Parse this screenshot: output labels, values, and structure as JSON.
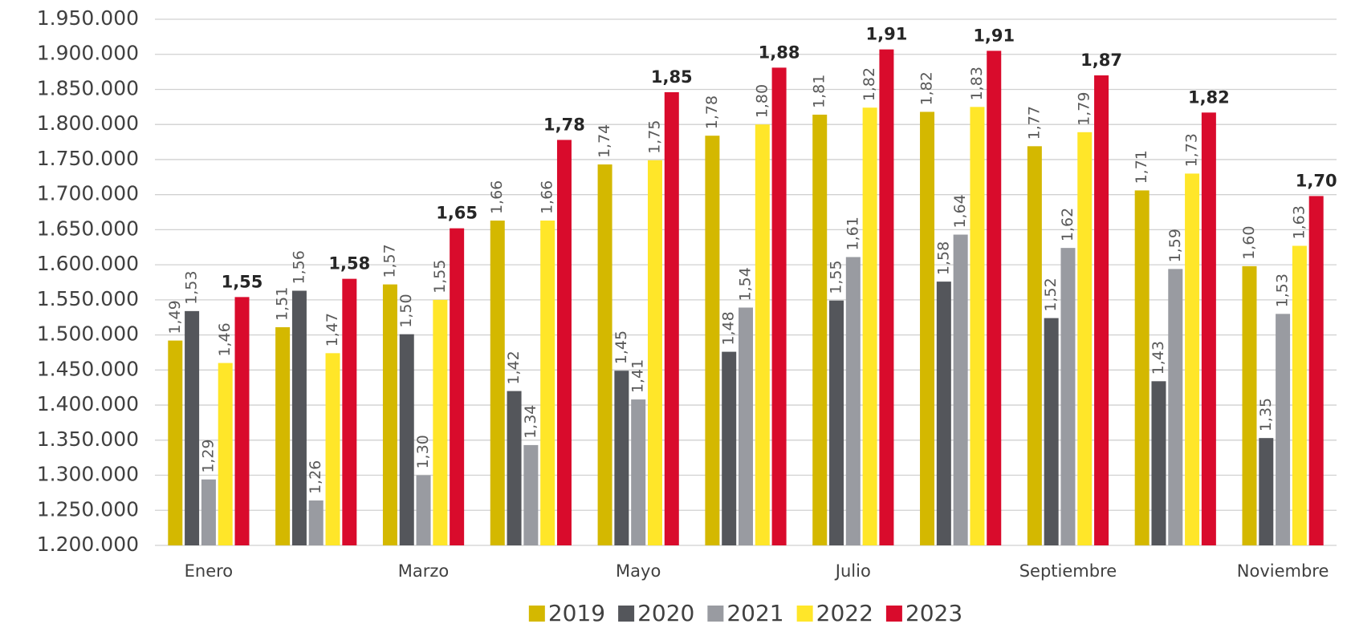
{
  "chart_data": {
    "type": "bar",
    "categories": [
      "Enero",
      null,
      "Marzo",
      null,
      "Mayo",
      null,
      "Julio",
      null,
      "Septiembre",
      null,
      "Noviembre"
    ],
    "ylim": [
      1200000,
      1950000
    ],
    "yticks": [
      {
        "value": 1200000,
        "label": "1.200.000"
      },
      {
        "value": 1250000,
        "label": "1.250.000"
      },
      {
        "value": 1300000,
        "label": "1.300.000"
      },
      {
        "value": 1350000,
        "label": "1.350.000"
      },
      {
        "value": 1400000,
        "label": "1.400.000"
      },
      {
        "value": 1450000,
        "label": "1.450.000"
      },
      {
        "value": 1500000,
        "label": "1.500.000"
      },
      {
        "value": 1550000,
        "label": "1.550.000"
      },
      {
        "value": 1600000,
        "label": "1.600.000"
      },
      {
        "value": 1650000,
        "label": "1.650.000"
      },
      {
        "value": 1700000,
        "label": "1.700.000"
      },
      {
        "value": 1750000,
        "label": "1.750.000"
      },
      {
        "value": 1800000,
        "label": "1.800.000"
      },
      {
        "value": 1850000,
        "label": "1.850.000"
      },
      {
        "value": 1900000,
        "label": "1.900.000"
      },
      {
        "value": 1950000,
        "label": "1.950.000"
      }
    ],
    "grid": true,
    "legend": "bottom",
    "series": [
      {
        "name": "2019",
        "color": "#d4b800",
        "values": [
          1492000,
          1511000,
          1572000,
          1663000,
          1743000,
          1784000,
          1814000,
          1818000,
          1769000,
          1706000,
          1598000
        ],
        "value_labels": [
          "1,49",
          "1,51",
          "1,57",
          "1,66",
          "1,74",
          "1,78",
          "1,81",
          "1,82",
          "1,77",
          "1,71",
          "1,60"
        ]
      },
      {
        "name": "2020",
        "color": "#54565b",
        "values": [
          1534000,
          1563000,
          1501000,
          1420000,
          1449000,
          1476000,
          1549000,
          1576000,
          1524000,
          1434000,
          1353000
        ],
        "value_labels": [
          "1,53",
          "1,56",
          "1,50",
          "1,42",
          "1,45",
          "1,48",
          "1,55",
          "1,58",
          "1,52",
          "1,43",
          "1,35"
        ]
      },
      {
        "name": "2021",
        "color": "#999ba1",
        "values": [
          1294000,
          1264000,
          1300000,
          1343000,
          1408000,
          1539000,
          1611000,
          1643000,
          1624000,
          1594000,
          1530000
        ],
        "value_labels": [
          "1,29",
          "1,26",
          "1,30",
          "1,34",
          "1,41",
          "1,54",
          "1,61",
          "1,64",
          "1,62",
          "1,59",
          "1,53"
        ]
      },
      {
        "name": "2022",
        "color": "#ffe629",
        "values": [
          1460000,
          1474000,
          1550000,
          1663000,
          1749000,
          1800000,
          1824000,
          1825000,
          1789000,
          1730000,
          1627000
        ],
        "value_labels": [
          "1,46",
          "1,47",
          "1,55",
          "1,66",
          "1,75",
          "1,80",
          "1,82",
          "1,83",
          "1,79",
          "1,73",
          "1,63"
        ]
      },
      {
        "name": "2023",
        "color": "#d90b2c",
        "values": [
          1554000,
          1580000,
          1652000,
          1778000,
          1846000,
          1881000,
          1907000,
          1905000,
          1870000,
          1817000,
          1698000
        ],
        "value_labels": [
          "1,55",
          "1,58",
          "1,65",
          "1,78",
          "1,85",
          "1,88",
          "1,91",
          "1,91",
          "1,87",
          "1,82",
          "1,70"
        ]
      }
    ]
  }
}
